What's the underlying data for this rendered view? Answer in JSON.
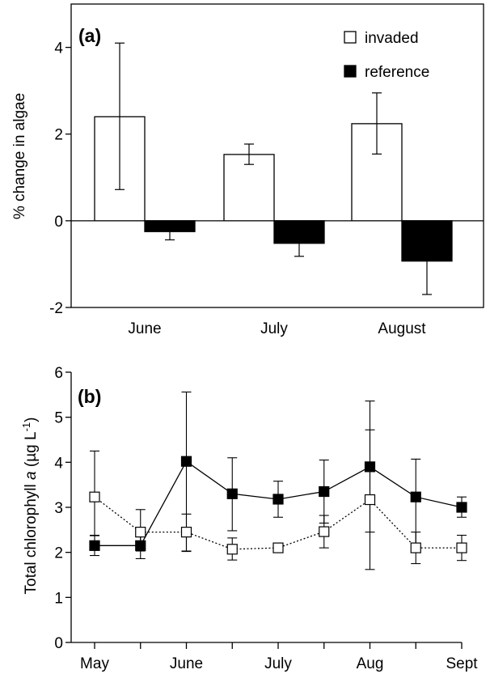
{
  "chart_data": [
    {
      "type": "bar",
      "panel_label": "(a)",
      "ylabel": "% change in algae",
      "categories": [
        "June",
        "July",
        "August"
      ],
      "ylim": [
        -2,
        5
      ],
      "yticks": [
        -2,
        0,
        2,
        4
      ],
      "legend_position": "top-right",
      "series": [
        {
          "name": "invaded",
          "fill": "#ffffff",
          "values": [
            2.4,
            1.53,
            2.24
          ],
          "err_low": [
            0.72,
            1.3,
            1.54
          ],
          "err_high": [
            4.1,
            1.77,
            2.95
          ]
        },
        {
          "name": "reference",
          "fill": "#000000",
          "values": [
            -0.25,
            -0.52,
            -0.93
          ],
          "err_low": [
            -0.44,
            -0.82,
            -1.7
          ],
          "err_high": [
            -0.08,
            -0.22,
            -0.13
          ]
        }
      ]
    },
    {
      "type": "line",
      "panel_label": "(b)",
      "ylabel_main": "Total chlorophyll ",
      "ylabel_italic": "a",
      "ylabel_unit": " (µg L",
      "ylabel_sup": "-1",
      "ylabel_close": ")",
      "x_tick_labels": [
        "May",
        "June",
        "July",
        "Aug",
        "Sept"
      ],
      "ylim": [
        0,
        6
      ],
      "yticks": [
        0,
        1,
        2,
        3,
        4,
        5,
        6
      ],
      "series": [
        {
          "name": "invaded",
          "marker": "open-square",
          "line": "dotted",
          "x": [
            0,
            0.5,
            1,
            1.5,
            2,
            2.5,
            3,
            3.5,
            4
          ],
          "values": [
            3.23,
            2.45,
            2.45,
            2.07,
            2.1,
            2.46,
            3.17,
            2.1,
            2.1
          ],
          "err_low": [
            2.38,
            2.03,
            2.02,
            1.83,
            2.1,
            2.1,
            2.45,
            1.75,
            1.82
          ],
          "err_high": [
            4.25,
            2.95,
            2.85,
            2.32,
            2.1,
            2.82,
            4.72,
            2.45,
            2.38
          ]
        },
        {
          "name": "reference",
          "marker": "filled-square",
          "line": "solid",
          "x": [
            0,
            0.5,
            1,
            1.5,
            2,
            2.5,
            3,
            3.5,
            4
          ],
          "values": [
            2.15,
            2.15,
            4.02,
            3.3,
            3.18,
            3.35,
            3.9,
            3.23,
            3.0
          ],
          "err_low": [
            1.93,
            1.86,
            2.03,
            2.48,
            2.78,
            2.65,
            1.62,
            2.03,
            2.78
          ],
          "err_high": [
            2.37,
            2.44,
            5.56,
            4.1,
            3.58,
            4.05,
            5.36,
            4.07,
            3.23
          ]
        }
      ]
    }
  ]
}
